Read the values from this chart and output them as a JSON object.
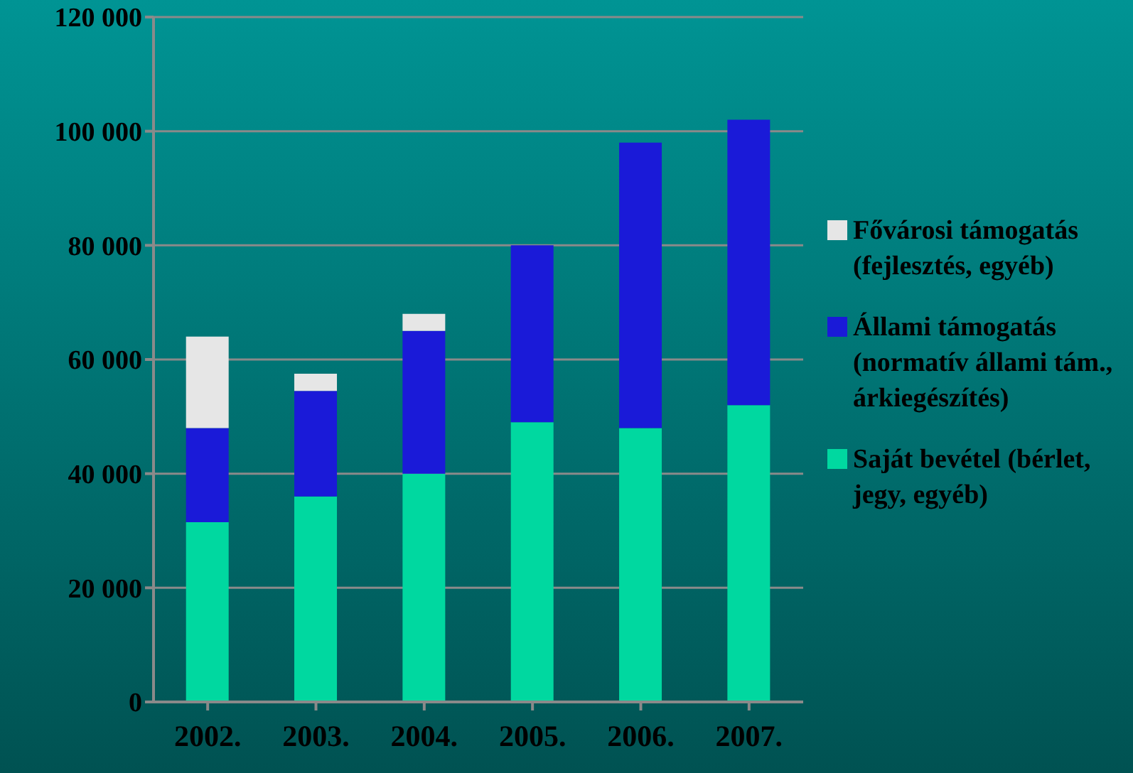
{
  "chart_data": {
    "type": "bar",
    "stacked": true,
    "categories": [
      "2002.",
      "2003.",
      "2004.",
      "2005.",
      "2006.",
      "2007."
    ],
    "series": [
      {
        "name": "Saját bevétel (bérlet, jegy, egyéb)",
        "color": "#00d8a0",
        "values": [
          31500,
          36000,
          40000,
          49000,
          48000,
          52000
        ]
      },
      {
        "name": "Állami támogatás (normatív állami tám., árkiegészítés)",
        "color": "#1a1ad8",
        "values": [
          16500,
          18500,
          25000,
          31000,
          50000,
          50000
        ]
      },
      {
        "name": "Fővárosi támogatás (fejlesztés, egyéb)",
        "color": "#e6e6e6",
        "values": [
          16000,
          3000,
          3000,
          null,
          null,
          null
        ]
      }
    ],
    "ylim": [
      0,
      120000
    ],
    "yticks": [
      {
        "value": 0,
        "label": "0"
      },
      {
        "value": 20000,
        "label": "20 000"
      },
      {
        "value": 40000,
        "label": "40 000"
      },
      {
        "value": 60000,
        "label": "60 000"
      },
      {
        "value": 80000,
        "label": "80 000"
      },
      {
        "value": 100000,
        "label": "100 000"
      },
      {
        "value": 120000,
        "label": "120 000"
      }
    ],
    "grid": "y",
    "legend": "right"
  }
}
